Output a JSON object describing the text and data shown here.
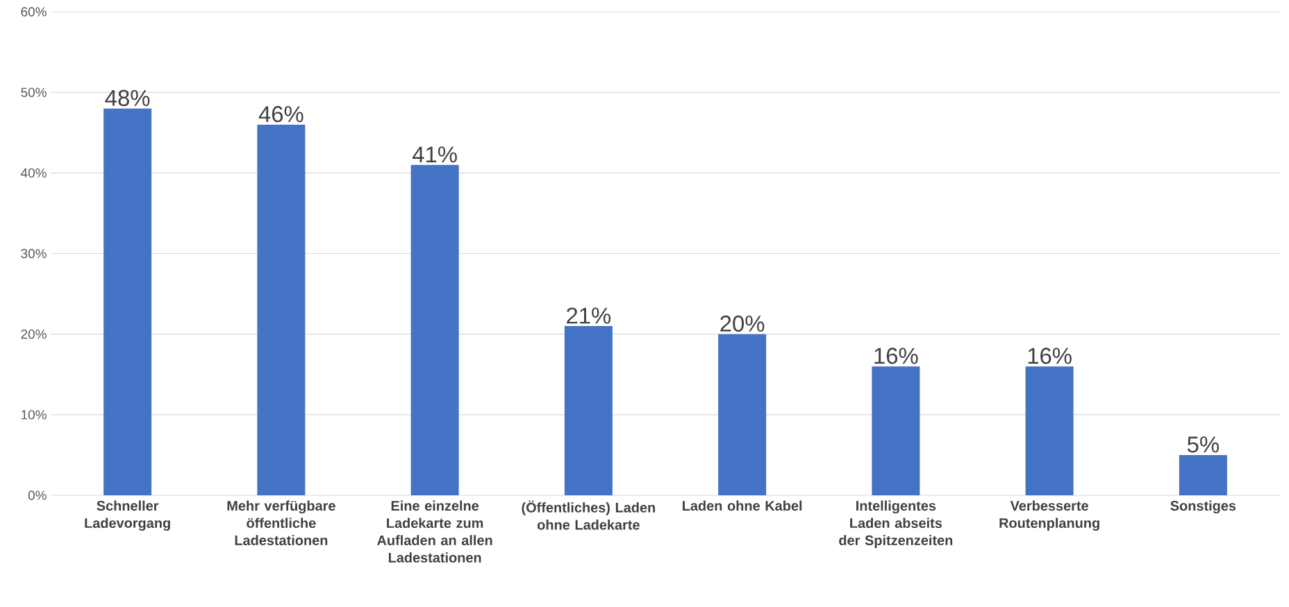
{
  "chart_data": {
    "type": "bar",
    "categories": [
      "Schneller Ladevorgang",
      "Mehr verfügbare öffentliche Ladestationen",
      "Eine einzelne Ladekarte zum Aufladen an allen Ladestationen",
      "(Öffentliches) Laden ohne Ladekarte",
      "Laden ohne Kabel",
      "Intelligentes Laden abseits der Spitzenzeiten",
      "Verbesserte Routenplanung",
      "Sonstiges"
    ],
    "values": [
      48,
      46,
      41,
      21,
      20,
      16,
      16,
      5
    ],
    "value_labels": [
      "48%",
      "46%",
      "41%",
      "21%",
      "20%",
      "16%",
      "16%",
      "5%"
    ],
    "color": "#4472c4",
    "ylim": [
      0,
      60
    ],
    "yticks": [
      {
        "value": 0,
        "label": "0%"
      },
      {
        "value": 10,
        "label": "10%"
      },
      {
        "value": 20,
        "label": "20%"
      },
      {
        "value": 30,
        "label": "30%"
      },
      {
        "value": 40,
        "label": "40%"
      },
      {
        "value": 50,
        "label": "50%"
      },
      {
        "value": 60,
        "label": "60%"
      }
    ],
    "grid": "y"
  }
}
